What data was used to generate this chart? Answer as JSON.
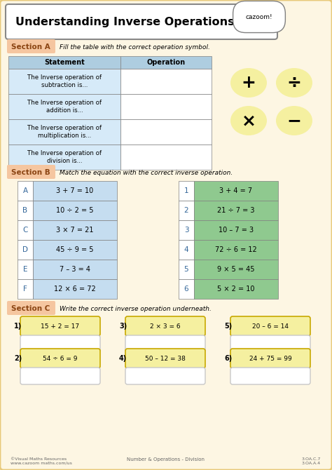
{
  "title": "Understanding Inverse Operations",
  "bg_color": "#fdf6e3",
  "border_color": "#e8c97a",
  "section_a_label": "Section A",
  "section_a_text": "Fill the table with the correct operation symbol.",
  "section_b_label": "Section B",
  "section_b_text": "Match the equation with the correct inverse operation.",
  "section_c_label": "Section C",
  "section_c_text": "Write the correct inverse operation underneath.",
  "table_header_bg": "#aecde0",
  "table_row_bg": "#d6eaf8",
  "table_statements": [
    "The Inverse operation of\nsubtraction is...",
    "The Inverse operation of\naddition is...",
    "The Inverse operation of\nmultiplication is...",
    "The Inverse operation of\ndivision is..."
  ],
  "symbols": [
    "+",
    "÷",
    "×",
    "−"
  ],
  "symbol_circle_color": "#f5f0a0",
  "left_equations": [
    "3 + 7 = 10",
    "10 ÷ 2 = 5",
    "3 × 7 = 21",
    "45 ÷ 9 = 5",
    "7 – 3 = 4",
    "12 × 6 = 72"
  ],
  "left_labels": [
    "A",
    "B",
    "C",
    "D",
    "E",
    "F"
  ],
  "right_equations": [
    "3 + 4 = 7",
    "21 ÷ 7 = 3",
    "10 – 7 = 3",
    "72 ÷ 6 = 12",
    "9 × 5 = 45",
    "5 × 2 = 10"
  ],
  "right_labels": [
    "1",
    "2",
    "3",
    "4",
    "5",
    "6"
  ],
  "blue_row_bg": "#c5ddf0",
  "green_row_bg": "#8fc98f",
  "section_c_equations": [
    "15 + 2 = 17",
    "2 × 3 = 6",
    "20 – 6 = 14",
    "54 ÷ 6 = 9",
    "50 – 12 = 38",
    "24 + 75 = 99"
  ],
  "section_c_labels": [
    "1)",
    "3)",
    "5)",
    "2)",
    "4)",
    "6)"
  ],
  "yellow_box_color": "#f5f0a0",
  "footer_left": "©Visual Maths Resources\nwww.cazoom maths.com/us",
  "footer_center": "Number & Operations - Division",
  "footer_right": "3.OA.C.7\n3.OA.A.4"
}
